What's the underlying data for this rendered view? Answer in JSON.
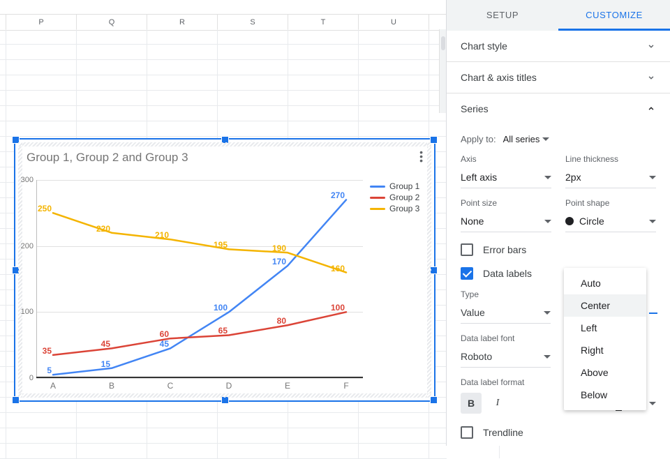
{
  "sheet": {
    "columns": [
      "P",
      "Q",
      "R",
      "S",
      "T",
      "U"
    ]
  },
  "chart": {
    "title": "Group 1, Group 2 and Group 3",
    "type": "line",
    "categories": [
      "A",
      "B",
      "C",
      "D",
      "E",
      "F"
    ],
    "series": [
      {
        "name": "Group 1",
        "color": "#4285f4",
        "values": [
          5,
          15,
          45,
          100,
          170,
          270
        ]
      },
      {
        "name": "Group 2",
        "color": "#db4437",
        "values": [
          35,
          45,
          60,
          65,
          80,
          100
        ]
      },
      {
        "name": "Group 3",
        "color": "#f4b400",
        "values": [
          250,
          220,
          210,
          195,
          190,
          160
        ]
      }
    ],
    "ylim": [
      0,
      300
    ],
    "ytick_step": 100,
    "line_width": 2.5,
    "label_fontsize": 12,
    "title_fontsize": 17,
    "title_color": "#757575",
    "grid_color": "#e0e0e0",
    "axis_color": "#333333",
    "tick_color": "#757575",
    "background": "#ffffff",
    "data_labels_visible": true
  },
  "panel": {
    "tabs": {
      "setup": "SETUP",
      "customize": "CUSTOMIZE",
      "active": "customize"
    },
    "sections": {
      "chart_style": "Chart style",
      "chart_axis_titles": "Chart & axis titles",
      "series": "Series"
    },
    "series": {
      "apply_to_label": "Apply to:",
      "apply_to_value": "All series",
      "axis": {
        "label": "Axis",
        "value": "Left axis"
      },
      "line_thickness": {
        "label": "Line thickness",
        "value": "2px"
      },
      "point_size": {
        "label": "Point size",
        "value": "None"
      },
      "point_shape": {
        "label": "Point shape",
        "value": "Circle"
      },
      "error_bars": {
        "label": "Error bars",
        "checked": false
      },
      "data_labels": {
        "label": "Data labels",
        "checked": true
      },
      "type": {
        "label": "Type",
        "value": "Value"
      },
      "font": {
        "label": "Data label font",
        "value": "Roboto"
      },
      "format_label": "Data label format",
      "bold_active": true,
      "fontsize_value": "Auto",
      "trendline": {
        "label": "Trendline",
        "checked": false
      }
    },
    "position_menu": {
      "options": [
        "Auto",
        "Center",
        "Left",
        "Right",
        "Above",
        "Below"
      ],
      "hover": "Center"
    }
  }
}
